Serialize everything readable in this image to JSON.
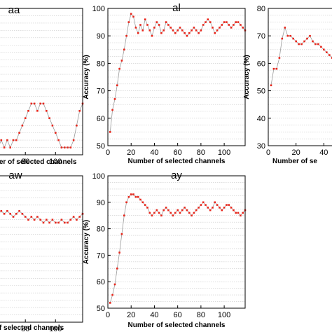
{
  "chart_data": [
    {
      "type": "line",
      "title": "aa",
      "xlabel": "Number of selected channels",
      "ylabel": "",
      "xlim": [
        0,
        118
      ],
      "ylim": [
        80,
        100
      ],
      "x_ticks": [
        60,
        80,
        100
      ],
      "y_ticks": [],
      "grid": true,
      "series": [
        {
          "color": "#e8261b",
          "x": [
            40,
            42,
            44,
            46,
            48,
            50,
            52,
            54,
            56,
            58,
            60,
            62,
            64,
            66,
            68,
            70,
            72,
            74,
            76,
            78,
            80,
            82,
            84,
            86,
            88,
            90,
            92,
            94,
            96,
            98,
            100,
            102,
            104,
            106,
            108,
            110,
            112,
            114,
            116,
            118
          ],
          "y": [
            90,
            90,
            90,
            89,
            88,
            87,
            86,
            85,
            84,
            83,
            82,
            81,
            82,
            81,
            82,
            81,
            82,
            82,
            83,
            84,
            85,
            86,
            87,
            87,
            86,
            87,
            87,
            86,
            85,
            84,
            83,
            82,
            81,
            81,
            81,
            81,
            82,
            84,
            86,
            87
          ]
        }
      ]
    },
    {
      "type": "line",
      "title": "al",
      "xlabel": "Number of selected channels",
      "ylabel": "Accuracy (%)",
      "xlim": [
        0,
        118
      ],
      "ylim": [
        50,
        100
      ],
      "x_ticks": [
        0,
        20,
        40,
        60,
        80,
        100
      ],
      "y_ticks": [
        50,
        60,
        70,
        80,
        90,
        100
      ],
      "grid": true,
      "series": [
        {
          "color": "#e8261b",
          "x": [
            2,
            4,
            6,
            8,
            10,
            12,
            14,
            16,
            18,
            20,
            22,
            24,
            26,
            28,
            30,
            32,
            34,
            36,
            38,
            40,
            42,
            44,
            46,
            48,
            50,
            52,
            54,
            56,
            58,
            60,
            62,
            64,
            66,
            68,
            70,
            72,
            74,
            76,
            78,
            80,
            82,
            84,
            86,
            88,
            90,
            92,
            94,
            96,
            98,
            100,
            102,
            104,
            106,
            108,
            110,
            112,
            114,
            116,
            118
          ],
          "y": [
            55,
            63,
            67,
            72,
            78,
            81,
            85,
            90,
            95,
            98,
            97,
            93,
            91,
            94,
            92,
            96,
            94,
            92,
            90,
            93,
            95,
            94,
            91,
            92,
            95,
            94,
            93,
            92,
            91,
            92,
            93,
            92,
            91,
            90,
            91,
            92,
            93,
            92,
            91,
            92,
            94,
            95,
            96,
            95,
            93,
            91,
            92,
            93,
            94,
            95,
            95,
            94,
            93,
            94,
            95,
            95,
            94,
            93,
            92
          ]
        }
      ]
    },
    {
      "type": "line",
      "title": "",
      "xlabel": "Number of se",
      "ylabel": "Accuracy (%)",
      "xlim": [
        0,
        118
      ],
      "ylim": [
        30,
        80
      ],
      "x_ticks": [
        0,
        20,
        40
      ],
      "y_ticks": [
        30,
        40,
        50,
        60,
        70,
        80
      ],
      "grid": true,
      "series": [
        {
          "color": "#e8261b",
          "x": [
            2,
            4,
            6,
            8,
            10,
            12,
            14,
            16,
            18,
            20,
            22,
            24,
            26,
            28,
            30,
            32,
            34,
            36,
            38,
            40,
            42,
            44,
            46,
            48,
            50,
            52,
            54,
            56,
            58,
            60,
            62
          ],
          "y": [
            52,
            58,
            58,
            62,
            69,
            73,
            70,
            70,
            69,
            68,
            67,
            67,
            68,
            69,
            70,
            68,
            67,
            67,
            66,
            65,
            64,
            63,
            62,
            62,
            61,
            60,
            62,
            63,
            64,
            63,
            62
          ]
        }
      ]
    },
    {
      "type": "line",
      "title": "aw",
      "xlabel": "of selected channels",
      "ylabel": "",
      "xlim": [
        0,
        118
      ],
      "ylim": [
        50,
        100
      ],
      "x_ticks": [
        60,
        80,
        100
      ],
      "y_ticks": [],
      "grid": true,
      "series": [
        {
          "color": "#e8261b",
          "x": [
            40,
            42,
            44,
            46,
            48,
            50,
            52,
            54,
            56,
            58,
            60,
            62,
            64,
            66,
            68,
            70,
            72,
            74,
            76,
            78,
            80,
            82,
            84,
            86,
            88,
            90,
            92,
            94,
            96,
            98,
            100,
            102,
            104,
            106,
            108,
            110,
            112,
            114,
            116,
            118
          ],
          "y": [
            80,
            81,
            80,
            81,
            82,
            82,
            81,
            83,
            84,
            85,
            86,
            87,
            88,
            87,
            88,
            87,
            86,
            87,
            88,
            87,
            86,
            85,
            86,
            85,
            86,
            85,
            84,
            85,
            84,
            85,
            84,
            84,
            85,
            84,
            84,
            85,
            86,
            85,
            86,
            87
          ]
        }
      ]
    },
    {
      "type": "line",
      "title": "ay",
      "xlabel": "Number of selected channels",
      "ylabel": "Accuracy (%)",
      "xlim": [
        0,
        118
      ],
      "ylim": [
        50,
        100
      ],
      "x_ticks": [
        0,
        20,
        40,
        60,
        80,
        100
      ],
      "y_ticks": [
        50,
        60,
        70,
        80,
        90,
        100
      ],
      "grid": true,
      "series": [
        {
          "color": "#e8261b",
          "x": [
            2,
            4,
            6,
            8,
            10,
            12,
            14,
            16,
            18,
            20,
            22,
            24,
            26,
            28,
            30,
            32,
            34,
            36,
            38,
            40,
            42,
            44,
            46,
            48,
            50,
            52,
            54,
            56,
            58,
            60,
            62,
            64,
            66,
            68,
            70,
            72,
            74,
            76,
            78,
            80,
            82,
            84,
            86,
            88,
            90,
            92,
            94,
            96,
            98,
            100,
            102,
            104,
            106,
            108,
            110,
            112,
            114,
            116,
            118
          ],
          "y": [
            52,
            55,
            59,
            65,
            71,
            78,
            85,
            90,
            92,
            93,
            93,
            92,
            92,
            91,
            90,
            89,
            88,
            86,
            85,
            86,
            87,
            86,
            85,
            87,
            88,
            87,
            86,
            85,
            86,
            87,
            86,
            87,
            88,
            87,
            86,
            85,
            86,
            87,
            88,
            89,
            90,
            89,
            88,
            87,
            88,
            90,
            89,
            88,
            87,
            88,
            89,
            89,
            88,
            87,
            86,
            86,
            85,
            86,
            87
          ]
        }
      ]
    }
  ]
}
